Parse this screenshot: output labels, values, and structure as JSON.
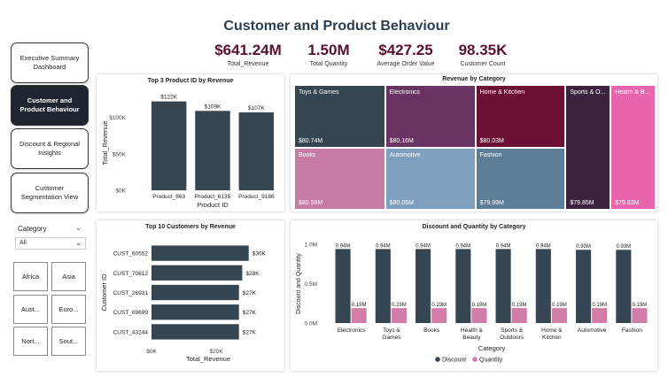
{
  "page": {
    "title": "Customer and Product Behaviour"
  },
  "kpis": [
    {
      "value": "$641.24M",
      "label": "Total_Revenue"
    },
    {
      "value": "1.50M",
      "label": "Total Quantity"
    },
    {
      "value": "$427.25",
      "label": "Average Order Value"
    },
    {
      "value": "98.35K",
      "label": "Customer Count"
    }
  ],
  "nav": [
    {
      "label": "Executive Summary Dashboard",
      "active": false
    },
    {
      "label": "Customer and Product Behaviour",
      "active": true
    },
    {
      "label": "Discount & Regional Insights",
      "active": false
    },
    {
      "label": "Customer Segmentation View",
      "active": false
    }
  ],
  "slicer": {
    "title": "Category",
    "selected": "All",
    "regions": [
      "Africa",
      "Asia",
      "Aust...",
      "Euro...",
      "Nort...",
      "Sout..."
    ]
  },
  "colors": {
    "dark": "#354652",
    "pink": "#d27ca8",
    "maroon": "#5a1030"
  },
  "chart_data": [
    {
      "type": "bar",
      "title": "Top 3 Product ID by Revenue",
      "xlabel": "Product ID",
      "ylabel": "Total_Revenue",
      "categories": [
        "Product_863",
        "Product_6135",
        "Product_9186"
      ],
      "values": [
        122,
        109,
        107
      ],
      "data_labels": [
        "$122K",
        "$109K",
        "$107K"
      ],
      "y_ticks": [
        0,
        50,
        100
      ],
      "y_tick_labels": [
        "$0K",
        "$50K",
        "$100K"
      ],
      "ylim": [
        0,
        130
      ]
    },
    {
      "type": "treemap",
      "title": "Revenue by Category",
      "items": [
        {
          "name": "Toys & Games",
          "value": 80.74,
          "label": "$80.74M",
          "color": "#354652"
        },
        {
          "name": "Books",
          "value": 80.59,
          "label": "$80.59M",
          "color": "#c77ba4"
        },
        {
          "name": "Electronics",
          "value": 80.16,
          "label": "$80.16M",
          "color": "#6a3462"
        },
        {
          "name": "Automotive",
          "value": 80.05,
          "label": "$80.05M",
          "color": "#7f9fbf"
        },
        {
          "name": "Home & Kitchen",
          "value": 80.03,
          "label": "$80.03M",
          "color": "#6b1034"
        },
        {
          "name": "Fashion",
          "value": 79.99,
          "label": "$79.99M",
          "color": "#5e7d97"
        },
        {
          "name": "Sports & O...",
          "value": 79.85,
          "label": "$79.85M",
          "color": "#3e2340"
        },
        {
          "name": "Health & B...",
          "value": 79.83,
          "label": "$79.83M",
          "color": "#e865ad"
        }
      ]
    },
    {
      "type": "bar",
      "orientation": "horizontal",
      "title": "Top 10 Customers by Revenue",
      "xlabel": "Total_Revenue",
      "ylabel": "Customer ID",
      "categories": [
        "CUST_60552",
        "CUST_70812",
        "CUST_26931",
        "CUST_69699",
        "CUST_43244"
      ],
      "values": [
        30,
        28,
        27,
        27,
        27
      ],
      "data_labels": [
        "$30K",
        "$28K",
        "$27K",
        "$27K",
        "$27K"
      ],
      "x_ticks": [
        0,
        20
      ],
      "x_tick_labels": [
        "$0K",
        "$20K"
      ],
      "xlim": [
        0,
        35
      ]
    },
    {
      "type": "bar",
      "title": "Discount and Quantity by Category",
      "xlabel": "Category",
      "ylabel": "Discount and Quantity",
      "categories": [
        "Electronics",
        "Toys & Games",
        "Books",
        "Health & Beauty",
        "Sports & Outdoors",
        "Home & Kitchen",
        "Automotive",
        "Fashion"
      ],
      "series": [
        {
          "name": "Discount",
          "values": [
            0.94,
            0.94,
            0.94,
            0.94,
            0.94,
            0.94,
            0.93,
            0.93
          ],
          "data_labels": [
            "0.94M",
            "0.94M",
            "0.94M",
            "0.94M",
            "0.94M",
            "0.94M",
            "0.93M",
            "0.93M"
          ],
          "color": "#354652"
        },
        {
          "name": "Quantity",
          "values": [
            0.19,
            0.19,
            0.19,
            0.19,
            0.19,
            0.19,
            0.19,
            0.19
          ],
          "data_labels": [
            "0.19M",
            "0.19M",
            "0.19M",
            "0.19M",
            "0.19M",
            "0.19M",
            "0.19M",
            "0.19M"
          ],
          "color": "#d27ca8"
        }
      ],
      "y_ticks": [
        0,
        0.5,
        1.0
      ],
      "y_tick_labels": [
        "0.0M",
        "0.5M",
        "1.0M"
      ],
      "ylim": [
        0,
        1.0
      ],
      "legend": "bottom"
    }
  ]
}
